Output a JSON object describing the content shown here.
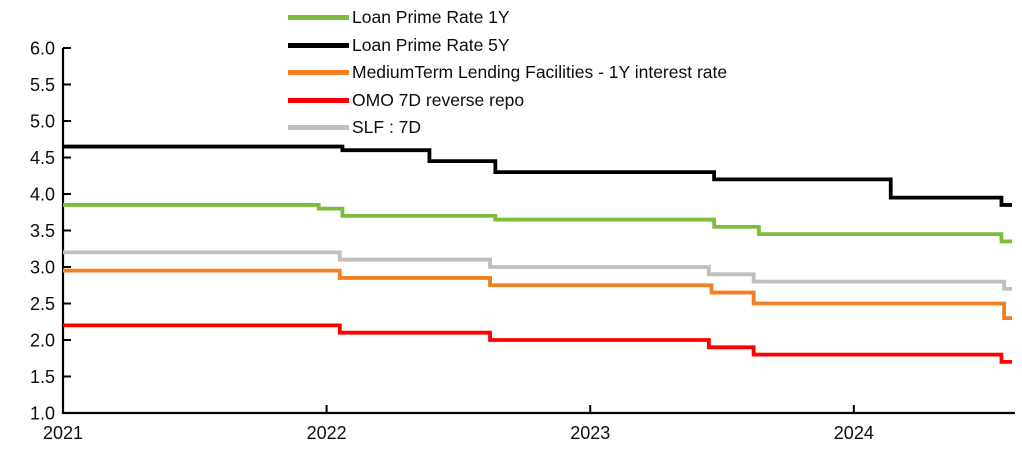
{
  "chart_data": {
    "type": "line",
    "title": "",
    "interpolation": "step-after",
    "unit": "percent",
    "x_axis": {
      "range": [
        2021.0,
        2024.6
      ],
      "ticks": [
        2021,
        2022,
        2023,
        2024
      ],
      "tick_labels": [
        "2021",
        "2022",
        "2023",
        "2024"
      ]
    },
    "y_axis": {
      "min": 1.0,
      "max": 6.0,
      "step": 0.5,
      "tick_labels": [
        "6.0",
        "5.5",
        "5.0",
        "4.5",
        "4.0",
        "3.5",
        "3.0",
        "2.5",
        "2.0",
        "1.5",
        "1.0"
      ]
    },
    "grid": "off",
    "legend_position": "top-center",
    "axis_color": "#000000",
    "series": [
      {
        "name": "Loan Prime Rate 1Y",
        "color": "#7CBE3C",
        "points": [
          [
            2021.0,
            3.85
          ],
          [
            2021.97,
            3.8
          ],
          [
            2022.06,
            3.7
          ],
          [
            2022.64,
            3.65
          ],
          [
            2023.47,
            3.55
          ],
          [
            2023.64,
            3.45
          ],
          [
            2024.56,
            3.35
          ]
        ]
      },
      {
        "name": "Loan Prime Rate 5Y",
        "color": "#000000",
        "points": [
          [
            2021.0,
            4.65
          ],
          [
            2022.06,
            4.6
          ],
          [
            2022.39,
            4.45
          ],
          [
            2022.64,
            4.3
          ],
          [
            2023.47,
            4.2
          ],
          [
            2024.14,
            3.95
          ],
          [
            2024.56,
            3.85
          ]
        ]
      },
      {
        "name": "MediumTerm Lending Facilities - 1Y interest rate",
        "color": "#F08024",
        "points": [
          [
            2021.0,
            2.95
          ],
          [
            2022.05,
            2.85
          ],
          [
            2022.62,
            2.75
          ],
          [
            2023.46,
            2.65
          ],
          [
            2023.62,
            2.5
          ],
          [
            2024.57,
            2.3
          ]
        ]
      },
      {
        "name": "OMO 7D reverse repo",
        "color": "#FF0000",
        "points": [
          [
            2021.0,
            2.2
          ],
          [
            2022.05,
            2.1
          ],
          [
            2022.62,
            2.0
          ],
          [
            2023.45,
            1.9
          ],
          [
            2023.62,
            1.8
          ],
          [
            2024.56,
            1.7
          ]
        ]
      },
      {
        "name": "SLF : 7D",
        "color": "#BFBFBF",
        "points": [
          [
            2021.0,
            3.2
          ],
          [
            2022.05,
            3.1
          ],
          [
            2022.62,
            3.0
          ],
          [
            2023.45,
            2.9
          ],
          [
            2023.62,
            2.8
          ],
          [
            2024.57,
            2.7
          ]
        ]
      }
    ]
  }
}
